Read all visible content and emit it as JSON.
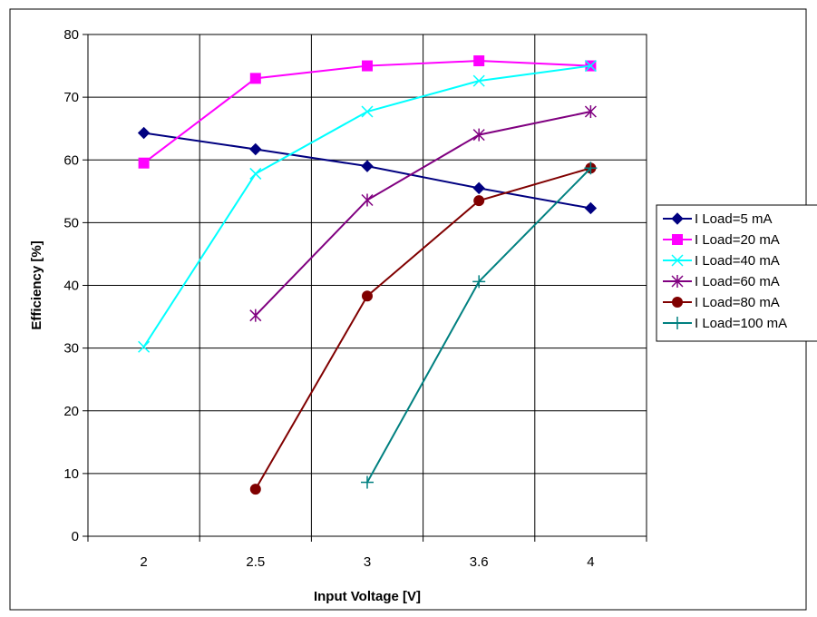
{
  "chart_data": {
    "type": "line",
    "title": "",
    "xlabel": "Input Voltage [V]",
    "ylabel": "Efficiency [%]",
    "categories": [
      "2",
      "2.5",
      "3",
      "3.6",
      "4"
    ],
    "ylim": [
      0,
      80
    ],
    "yticks": [
      0,
      10,
      20,
      30,
      40,
      50,
      60,
      70,
      80
    ],
    "grid": true,
    "legend_position": "right",
    "series": [
      {
        "name": "I Load=5 mA",
        "color": "#000080",
        "marker": "diamond",
        "values": [
          64.3,
          61.7,
          59.0,
          55.5,
          52.3
        ]
      },
      {
        "name": "I Load=20 mA",
        "color": "#FF00FF",
        "marker": "square",
        "values": [
          59.5,
          73.0,
          75.0,
          75.8,
          75.0
        ]
      },
      {
        "name": "I Load=40 mA",
        "color": "#00FFFF",
        "marker": "x",
        "values": [
          30.2,
          57.8,
          67.7,
          72.6,
          75.0
        ]
      },
      {
        "name": "I Load=60 mA",
        "color": "#800080",
        "marker": "star",
        "values": [
          null,
          35.2,
          53.6,
          64.0,
          67.7
        ]
      },
      {
        "name": "I Load=80 mA",
        "color": "#800000",
        "marker": "circle",
        "values": [
          null,
          7.5,
          38.3,
          53.5,
          58.7
        ]
      },
      {
        "name": "I Load=100 mA",
        "color": "#008080",
        "marker": "plus",
        "values": [
          null,
          null,
          8.6,
          40.6,
          58.7
        ]
      }
    ]
  }
}
